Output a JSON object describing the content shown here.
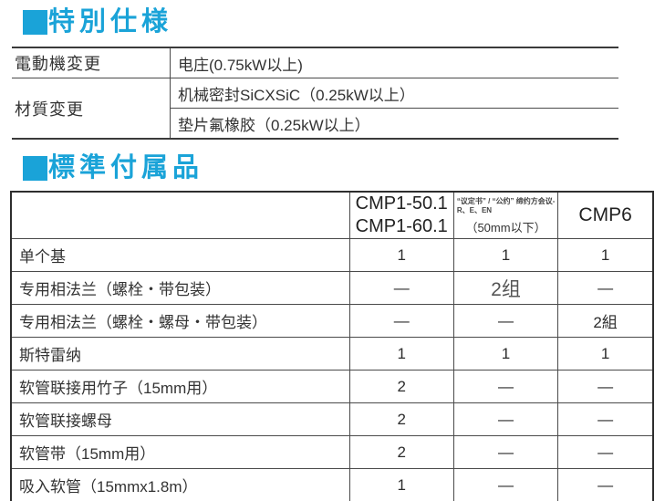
{
  "colors": {
    "accent_blue": "#1aa3d8",
    "border_dark": "#2e2e2e",
    "text": "#333333"
  },
  "special": {
    "title": "特別仕様",
    "marker_icon": "blue-square",
    "rows": {
      "motor_label": "電動機変更",
      "motor_value": "电庄(0.75kW以上)",
      "material_label": "材質変更",
      "material_value1": "机械密封SiCXSiC（0.25kW以上）",
      "material_value2": "垫片氟橡胶（0.25kW以上）"
    }
  },
  "accessories": {
    "title": "標準付属品",
    "marker_icon": "blue-square",
    "header": {
      "model_a_line1": "CMP1-50.1",
      "model_a_line2": "CMP1-60.1",
      "model_b_note": "“议定书” / “公约” 缔约方会议-R、E、EN",
      "model_b_size": "（50mm以下）",
      "model_c": "CMP6"
    },
    "rows": [
      {
        "label": "单个基",
        "cmp1": "1",
        "mid": "1",
        "cmp6": "1"
      },
      {
        "label": "专用相法兰（螺栓・带包装）",
        "cmp1": "—",
        "mid": "2组",
        "cmp6": "—"
      },
      {
        "label": "专用相法兰（螺栓・螺母・带包装）",
        "cmp1": "—",
        "mid": "—",
        "cmp6": "2組"
      },
      {
        "label": "斯特雷纳",
        "cmp1": "1",
        "mid": "1",
        "cmp6": "1"
      },
      {
        "label": "软管联接用竹子（15mm用）",
        "cmp1": "2",
        "mid": "—",
        "cmp6": "—"
      },
      {
        "label": "软管联接螺母",
        "cmp1": "2",
        "mid": "—",
        "cmp6": "—"
      },
      {
        "label": "软管带（15mm用）",
        "cmp1": "2",
        "mid": "—",
        "cmp6": "—"
      },
      {
        "label": "吸入软管（15mmx1.8m）",
        "cmp1": "1",
        "mid": "—",
        "cmp6": "—"
      }
    ]
  }
}
